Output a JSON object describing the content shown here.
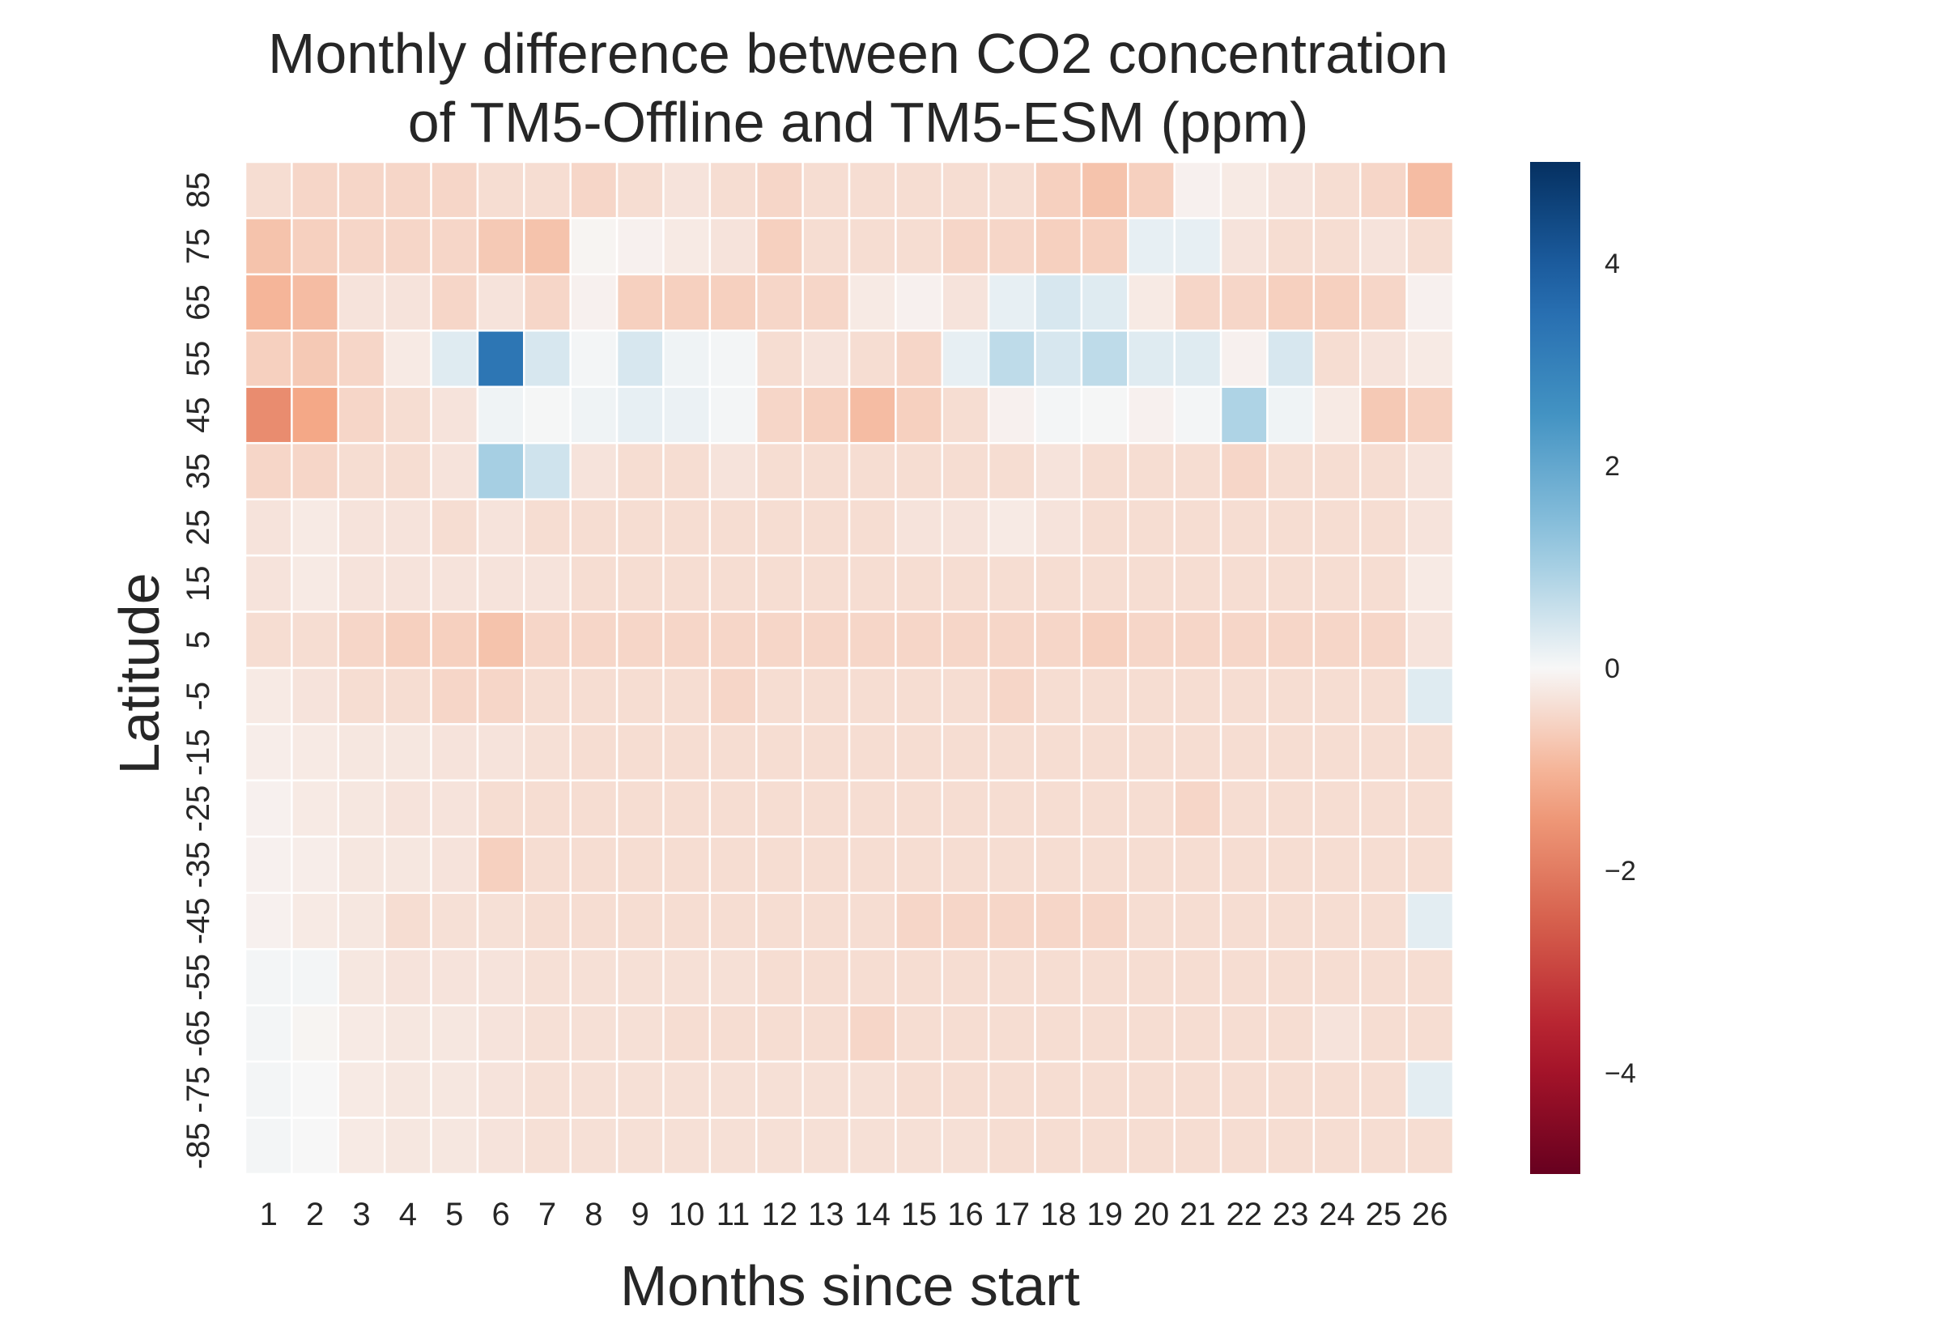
{
  "chart_data": {
    "type": "heatmap",
    "title_lines": [
      "Monthly difference between CO2 concentration",
      "of TM5-Offline and TM5-ESM (ppm)"
    ],
    "xlabel": "Months since start",
    "ylabel": "Latitude",
    "x_categories": [
      "1",
      "2",
      "3",
      "4",
      "5",
      "6",
      "7",
      "8",
      "9",
      "10",
      "11",
      "12",
      "13",
      "14",
      "15",
      "16",
      "17",
      "18",
      "19",
      "20",
      "21",
      "22",
      "23",
      "24",
      "25",
      "26"
    ],
    "y_categories": [
      "85",
      "75",
      "65",
      "55",
      "45",
      "35",
      "25",
      "15",
      "5",
      "-5",
      "-15",
      "-25",
      "-35",
      "-45",
      "-55",
      "-65",
      "-75",
      "-85"
    ],
    "colorbar": {
      "colormap": "RdBu",
      "vmin": -5,
      "vmax": 5,
      "ticks": [
        4,
        2,
        0,
        -2,
        -4
      ],
      "tick_labels": [
        "4",
        "2",
        "0",
        "−2",
        "−4"
      ]
    },
    "grid": false,
    "values": [
      [
        -0.4,
        -0.5,
        -0.5,
        -0.5,
        -0.5,
        -0.4,
        -0.4,
        -0.5,
        -0.4,
        -0.3,
        -0.4,
        -0.5,
        -0.4,
        -0.4,
        -0.4,
        -0.4,
        -0.4,
        -0.6,
        -0.8,
        -0.6,
        -0.1,
        -0.2,
        -0.3,
        -0.4,
        -0.5,
        -0.9
      ],
      [
        -0.8,
        -0.6,
        -0.5,
        -0.5,
        -0.5,
        -0.7,
        -0.8,
        -0.05,
        -0.1,
        -0.2,
        -0.3,
        -0.6,
        -0.4,
        -0.4,
        -0.4,
        -0.5,
        -0.5,
        -0.6,
        -0.6,
        0.2,
        0.2,
        -0.3,
        -0.4,
        -0.4,
        -0.3,
        -0.4
      ],
      [
        -1.0,
        -0.9,
        -0.3,
        -0.3,
        -0.5,
        -0.3,
        -0.5,
        -0.1,
        -0.6,
        -0.6,
        -0.6,
        -0.5,
        -0.5,
        -0.2,
        -0.1,
        -0.3,
        0.2,
        0.4,
        0.3,
        -0.2,
        -0.5,
        -0.5,
        -0.6,
        -0.6,
        -0.5,
        -0.1
      ],
      [
        -0.6,
        -0.7,
        -0.5,
        -0.2,
        0.3,
        3.3,
        0.4,
        0.05,
        0.4,
        0.1,
        0.05,
        -0.4,
        -0.3,
        -0.4,
        -0.5,
        0.2,
        0.7,
        0.4,
        0.7,
        0.3,
        0.3,
        -0.1,
        0.4,
        -0.4,
        -0.3,
        -0.2
      ],
      [
        -1.7,
        -1.2,
        -0.5,
        -0.4,
        -0.3,
        0.1,
        0.03,
        0.1,
        0.2,
        0.15,
        0.05,
        -0.5,
        -0.6,
        -0.9,
        -0.6,
        -0.4,
        -0.1,
        0.05,
        0.03,
        -0.1,
        0.05,
        0.9,
        0.1,
        -0.2,
        -0.7,
        -0.6
      ],
      [
        -0.5,
        -0.5,
        -0.4,
        -0.4,
        -0.3,
        1.0,
        0.5,
        -0.3,
        -0.4,
        -0.4,
        -0.3,
        -0.4,
        -0.4,
        -0.4,
        -0.4,
        -0.4,
        -0.4,
        -0.3,
        -0.4,
        -0.4,
        -0.4,
        -0.5,
        -0.4,
        -0.4,
        -0.4,
        -0.3
      ],
      [
        -0.3,
        -0.2,
        -0.3,
        -0.3,
        -0.4,
        -0.3,
        -0.4,
        -0.4,
        -0.4,
        -0.4,
        -0.4,
        -0.4,
        -0.4,
        -0.4,
        -0.3,
        -0.3,
        -0.2,
        -0.3,
        -0.4,
        -0.4,
        -0.4,
        -0.4,
        -0.4,
        -0.4,
        -0.4,
        -0.3
      ],
      [
        -0.3,
        -0.2,
        -0.3,
        -0.3,
        -0.3,
        -0.3,
        -0.3,
        -0.4,
        -0.4,
        -0.4,
        -0.4,
        -0.4,
        -0.4,
        -0.4,
        -0.4,
        -0.4,
        -0.4,
        -0.4,
        -0.4,
        -0.4,
        -0.4,
        -0.4,
        -0.4,
        -0.4,
        -0.4,
        -0.2
      ],
      [
        -0.4,
        -0.4,
        -0.5,
        -0.6,
        -0.6,
        -0.8,
        -0.5,
        -0.5,
        -0.5,
        -0.5,
        -0.5,
        -0.5,
        -0.5,
        -0.5,
        -0.5,
        -0.5,
        -0.5,
        -0.5,
        -0.6,
        -0.5,
        -0.5,
        -0.5,
        -0.5,
        -0.5,
        -0.5,
        -0.3
      ],
      [
        -0.2,
        -0.3,
        -0.4,
        -0.4,
        -0.5,
        -0.5,
        -0.4,
        -0.4,
        -0.4,
        -0.4,
        -0.5,
        -0.4,
        -0.4,
        -0.4,
        -0.4,
        -0.4,
        -0.5,
        -0.4,
        -0.4,
        -0.4,
        -0.4,
        -0.4,
        -0.4,
        -0.4,
        -0.4,
        0.3
      ],
      [
        -0.15,
        -0.2,
        -0.25,
        -0.25,
        -0.3,
        -0.3,
        -0.35,
        -0.4,
        -0.4,
        -0.4,
        -0.4,
        -0.4,
        -0.4,
        -0.4,
        -0.4,
        -0.4,
        -0.4,
        -0.4,
        -0.4,
        -0.4,
        -0.4,
        -0.4,
        -0.4,
        -0.4,
        -0.4,
        -0.4
      ],
      [
        -0.1,
        -0.2,
        -0.25,
        -0.3,
        -0.3,
        -0.4,
        -0.4,
        -0.4,
        -0.4,
        -0.4,
        -0.4,
        -0.4,
        -0.4,
        -0.4,
        -0.4,
        -0.4,
        -0.4,
        -0.4,
        -0.4,
        -0.4,
        -0.5,
        -0.4,
        -0.4,
        -0.4,
        -0.4,
        -0.4
      ],
      [
        -0.1,
        -0.15,
        -0.25,
        -0.25,
        -0.3,
        -0.6,
        -0.4,
        -0.4,
        -0.4,
        -0.4,
        -0.4,
        -0.4,
        -0.4,
        -0.4,
        -0.4,
        -0.4,
        -0.4,
        -0.4,
        -0.4,
        -0.4,
        -0.4,
        -0.4,
        -0.4,
        -0.4,
        -0.4,
        -0.4
      ],
      [
        -0.1,
        -0.2,
        -0.25,
        -0.4,
        -0.35,
        -0.35,
        -0.4,
        -0.4,
        -0.4,
        -0.4,
        -0.4,
        -0.4,
        -0.4,
        -0.4,
        -0.5,
        -0.5,
        -0.5,
        -0.5,
        -0.5,
        -0.4,
        -0.4,
        -0.4,
        -0.4,
        -0.4,
        -0.4,
        0.25
      ],
      [
        0.05,
        0.05,
        -0.25,
        -0.3,
        -0.3,
        -0.3,
        -0.35,
        -0.35,
        -0.35,
        -0.35,
        -0.35,
        -0.4,
        -0.4,
        -0.4,
        -0.4,
        -0.4,
        -0.4,
        -0.4,
        -0.4,
        -0.4,
        -0.4,
        -0.4,
        -0.4,
        -0.4,
        -0.4,
        -0.4
      ],
      [
        0.05,
        -0.05,
        -0.2,
        -0.25,
        -0.25,
        -0.3,
        -0.35,
        -0.35,
        -0.35,
        -0.4,
        -0.4,
        -0.4,
        -0.4,
        -0.5,
        -0.4,
        -0.4,
        -0.4,
        -0.4,
        -0.4,
        -0.4,
        -0.4,
        -0.4,
        -0.4,
        -0.3,
        -0.4,
        -0.4
      ],
      [
        0.05,
        0.0,
        -0.2,
        -0.25,
        -0.25,
        -0.3,
        -0.35,
        -0.35,
        -0.35,
        -0.35,
        -0.35,
        -0.35,
        -0.35,
        -0.35,
        -0.4,
        -0.4,
        -0.4,
        -0.4,
        -0.4,
        -0.4,
        -0.4,
        -0.4,
        -0.4,
        -0.4,
        -0.4,
        0.25
      ],
      [
        0.05,
        0.0,
        -0.2,
        -0.25,
        -0.25,
        -0.3,
        -0.35,
        -0.35,
        -0.35,
        -0.35,
        -0.35,
        -0.35,
        -0.35,
        -0.35,
        -0.35,
        -0.35,
        -0.4,
        -0.4,
        -0.4,
        -0.4,
        -0.4,
        -0.4,
        -0.4,
        -0.4,
        -0.4,
        -0.4
      ]
    ]
  }
}
